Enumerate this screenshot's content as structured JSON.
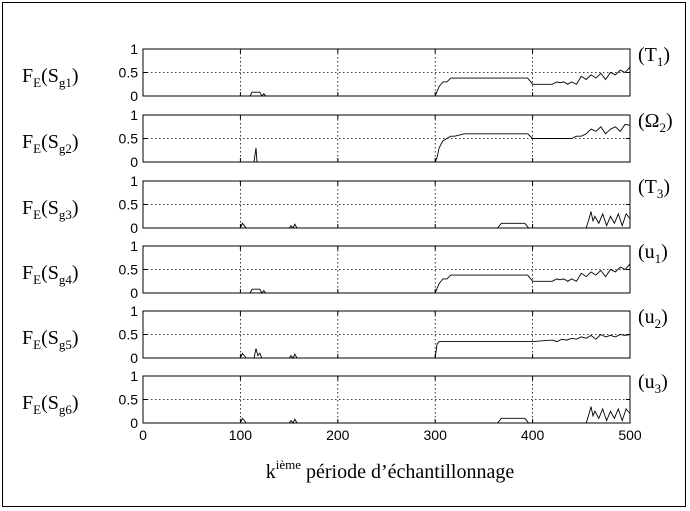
{
  "chart_data": {
    "type": "line",
    "xlabel_main": "k",
    "xlabel_sup": "ième",
    "xlabel_rest": " période d’échantillonnage",
    "xlim": [
      0,
      500
    ],
    "xticks": [
      0,
      100,
      200,
      300,
      400,
      500
    ],
    "x_tick_labels": [
      "0",
      "100",
      "200",
      "300",
      "400",
      "500"
    ],
    "ylim": [
      0,
      1
    ],
    "yticks": [
      0,
      0.5,
      1
    ],
    "y_tick_labels": [
      "0",
      "0.5",
      "1"
    ],
    "grid": "dotted",
    "panels": [
      {
        "ylabel_main": "F",
        "ylabel_sub1": "E",
        "ylabel_mid": "(S",
        "ylabel_sub2": "g1",
        "ylabel_end": ")",
        "right_label": "(T",
        "right_sub": "1",
        "right_end": ")",
        "x": [
          0,
          110,
          112,
          118,
          120,
          122,
          124,
          126,
          128,
          130,
          300,
          302,
          304,
          308,
          312,
          316,
          320,
          395,
          400,
          420,
          425,
          428,
          432,
          436,
          440,
          445,
          450,
          455,
          460,
          465,
          470,
          475,
          480,
          485,
          490,
          495,
          500
        ],
        "y": [
          0,
          0,
          0.08,
          0.08,
          0.08,
          0,
          0.05,
          0,
          0,
          0,
          0,
          0.1,
          0.2,
          0.3,
          0.3,
          0.38,
          0.38,
          0.38,
          0.25,
          0.25,
          0.3,
          0.28,
          0.3,
          0.25,
          0.3,
          0.25,
          0.42,
          0.35,
          0.45,
          0.38,
          0.48,
          0.35,
          0.5,
          0.45,
          0.55,
          0.5,
          0.62
        ]
      },
      {
        "ylabel_main": "F",
        "ylabel_sub1": "E",
        "ylabel_mid": "(S",
        "ylabel_sub2": "g2",
        "ylabel_end": ")",
        "right_label": "(Ω",
        "right_sub": "2",
        "right_end": ")",
        "x": [
          0,
          114,
          115,
          116,
          117,
          300,
          302,
          304,
          308,
          312,
          316,
          320,
          330,
          395,
          400,
          440,
          445,
          450,
          455,
          460,
          465,
          470,
          475,
          480,
          485,
          490,
          495,
          500
        ],
        "y": [
          0,
          0,
          0.15,
          0.3,
          0,
          0,
          0.1,
          0.3,
          0.45,
          0.5,
          0.55,
          0.55,
          0.6,
          0.6,
          0.5,
          0.5,
          0.55,
          0.55,
          0.6,
          0.7,
          0.65,
          0.75,
          0.6,
          0.7,
          0.75,
          0.65,
          0.8,
          0.78
        ]
      },
      {
        "ylabel_main": "F",
        "ylabel_sub1": "E",
        "ylabel_mid": "(S",
        "ylabel_sub2": "g3",
        "ylabel_end": ")",
        "right_label": "(T",
        "right_sub": "3",
        "right_end": ")",
        "x": [
          0,
          100,
          102,
          104,
          106,
          150,
          152,
          154,
          156,
          158,
          360,
          364,
          368,
          392,
          396,
          400,
          455,
          458,
          460,
          462,
          464,
          468,
          472,
          476,
          480,
          484,
          488,
          492,
          496,
          500
        ],
        "y": [
          0,
          0,
          0.1,
          0.05,
          0,
          0,
          0.05,
          0,
          0.08,
          0,
          0,
          0,
          0.1,
          0.1,
          0,
          0,
          0,
          0.2,
          0.35,
          0.15,
          0.25,
          0.1,
          0.3,
          0.05,
          0.25,
          0.1,
          0.3,
          0.05,
          0.3,
          0.2
        ]
      },
      {
        "ylabel_main": "F",
        "ylabel_sub1": "E",
        "ylabel_mid": "(S",
        "ylabel_sub2": "g4",
        "ylabel_end": ")",
        "right_label": "(u",
        "right_sub": "1",
        "right_end": ")",
        "x": [
          0,
          110,
          112,
          118,
          120,
          122,
          124,
          126,
          128,
          130,
          300,
          302,
          304,
          308,
          312,
          316,
          320,
          395,
          400,
          420,
          425,
          428,
          432,
          436,
          440,
          445,
          450,
          455,
          460,
          465,
          470,
          475,
          480,
          485,
          490,
          495,
          500
        ],
        "y": [
          0,
          0,
          0.08,
          0.08,
          0.08,
          0,
          0.05,
          0,
          0,
          0,
          0,
          0.1,
          0.2,
          0.3,
          0.3,
          0.38,
          0.38,
          0.38,
          0.25,
          0.25,
          0.3,
          0.28,
          0.3,
          0.25,
          0.3,
          0.25,
          0.42,
          0.35,
          0.45,
          0.38,
          0.48,
          0.35,
          0.5,
          0.45,
          0.55,
          0.5,
          0.62
        ]
      },
      {
        "ylabel_main": "F",
        "ylabel_sub1": "E",
        "ylabel_mid": "(S",
        "ylabel_sub2": "g5",
        "ylabel_end": ")",
        "right_label": "(u",
        "right_sub": "2",
        "right_end": ")",
        "x": [
          0,
          100,
          102,
          104,
          106,
          114,
          116,
          118,
          120,
          122,
          150,
          152,
          154,
          156,
          158,
          300,
          302,
          304,
          400,
          420,
          425,
          430,
          435,
          440,
          445,
          450,
          455,
          460,
          465,
          470,
          475,
          480,
          485,
          490,
          495,
          500
        ],
        "y": [
          0,
          0,
          0.1,
          0.05,
          0,
          0,
          0.2,
          0.05,
          0.1,
          0,
          0,
          0.05,
          0,
          0.08,
          0,
          0,
          0.3,
          0.35,
          0.35,
          0.38,
          0.35,
          0.4,
          0.38,
          0.42,
          0.4,
          0.45,
          0.42,
          0.48,
          0.4,
          0.5,
          0.45,
          0.48,
          0.45,
          0.5,
          0.48,
          0.5
        ]
      },
      {
        "ylabel_main": "F",
        "ylabel_sub1": "E",
        "ylabel_mid": "(S",
        "ylabel_sub2": "g6",
        "ylabel_end": ")",
        "right_label": "(u",
        "right_sub": "3",
        "right_end": ")",
        "x": [
          0,
          100,
          102,
          104,
          106,
          150,
          152,
          154,
          156,
          158,
          360,
          364,
          368,
          392,
          396,
          400,
          455,
          458,
          460,
          462,
          464,
          468,
          472,
          476,
          480,
          484,
          488,
          492,
          496,
          500
        ],
        "y": [
          0,
          0,
          0.1,
          0.05,
          0,
          0,
          0.05,
          0,
          0.08,
          0,
          0,
          0,
          0.1,
          0.1,
          0,
          0,
          0,
          0.2,
          0.35,
          0.15,
          0.25,
          0.1,
          0.3,
          0.05,
          0.25,
          0.1,
          0.3,
          0.05,
          0.3,
          0.2
        ]
      }
    ]
  }
}
